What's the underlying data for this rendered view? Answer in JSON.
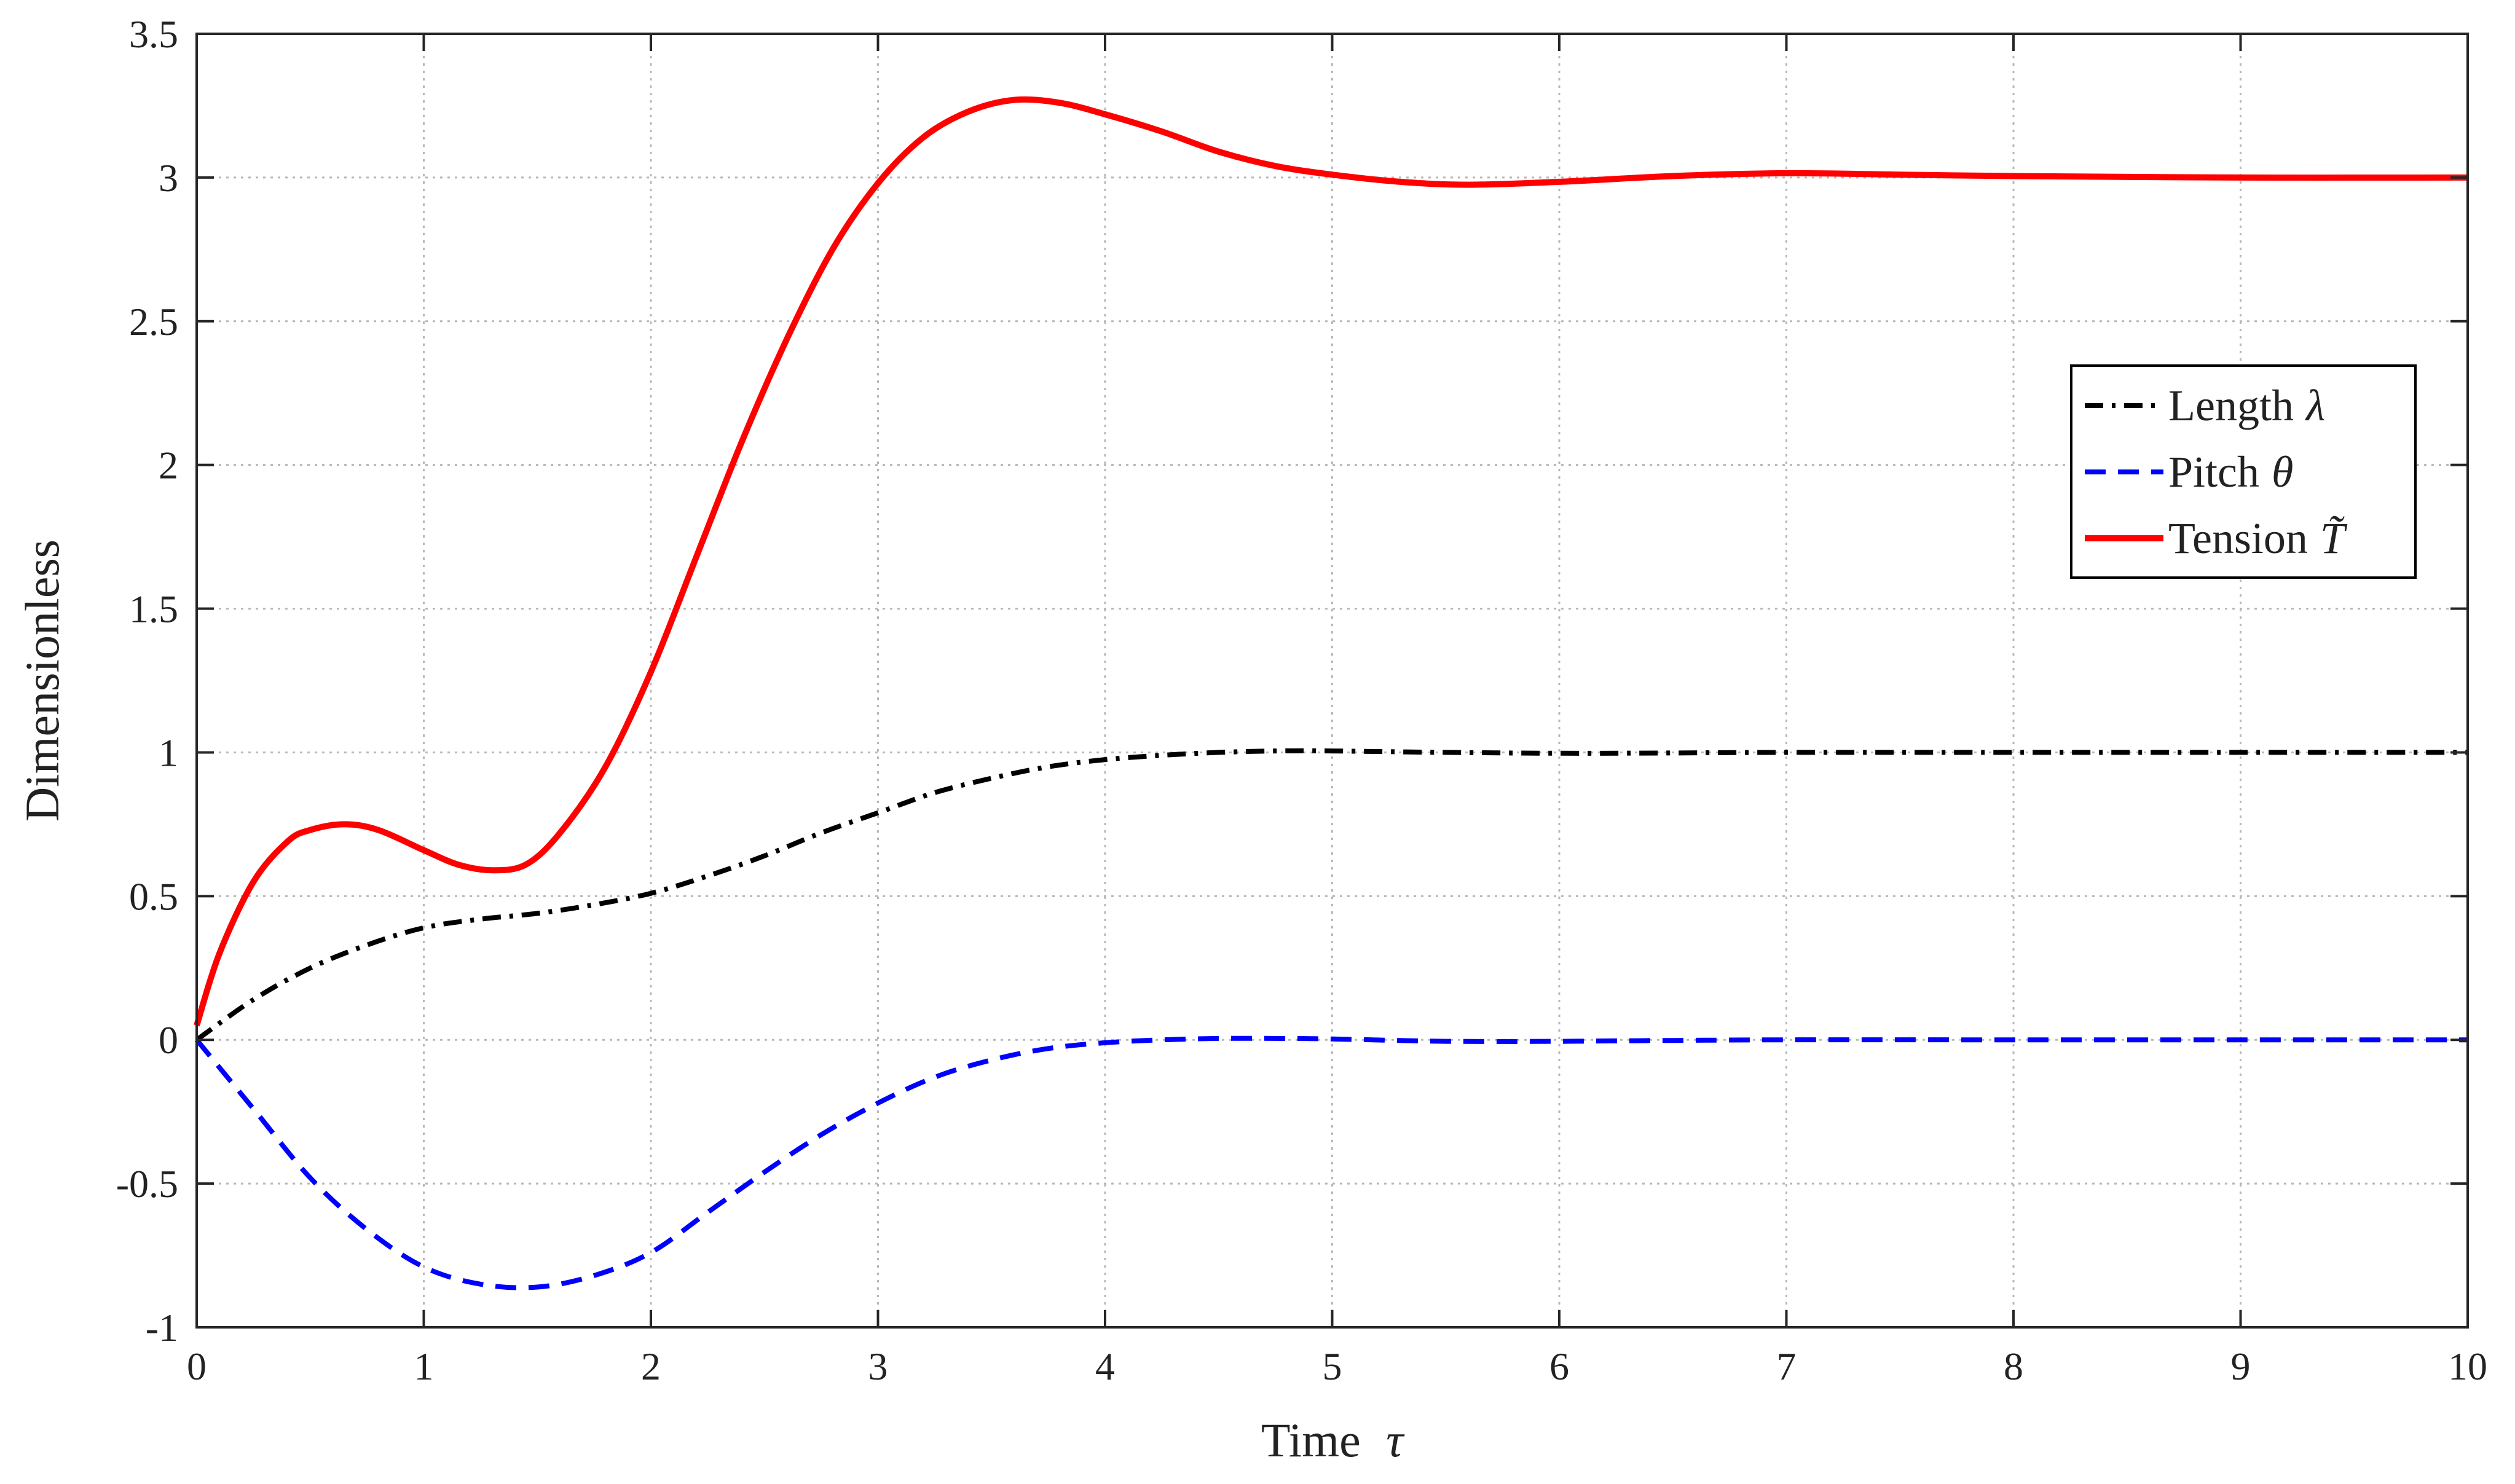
{
  "chart_data": {
    "type": "line",
    "title": "",
    "xlabel": "Time",
    "xlabel_symbol": "τ",
    "ylabel": "Dimensionless",
    "xlim": [
      0,
      10
    ],
    "ylim": [
      -1,
      3.5
    ],
    "xticks": [
      0,
      1,
      2,
      3,
      4,
      5,
      6,
      7,
      8,
      9,
      10
    ],
    "xtick_labels": [
      "0",
      "1",
      "2",
      "3",
      "4",
      "5",
      "6",
      "7",
      "8",
      "9",
      "10"
    ],
    "yticks": [
      -1,
      -0.5,
      0,
      0.5,
      1,
      1.5,
      2,
      2.5,
      3,
      3.5
    ],
    "ytick_labels": [
      "-1",
      "-0.5",
      "0",
      "0.5",
      "1",
      "1.5",
      "2",
      "2.5",
      "3",
      "3.5"
    ],
    "grid": true,
    "legend_position": "right",
    "series": [
      {
        "name": "Length",
        "symbol": "λ",
        "color": "#000000",
        "style": "dash-dot",
        "x": [
          0,
          0.25,
          0.5,
          0.75,
          1,
          1.25,
          1.5,
          1.75,
          2,
          2.25,
          2.5,
          2.75,
          3,
          3.25,
          3.5,
          3.75,
          4,
          4.25,
          4.5,
          4.75,
          5,
          5.5,
          6,
          6.5,
          7,
          8,
          9,
          10
        ],
        "y": [
          0,
          0.14,
          0.25,
          0.33,
          0.39,
          0.42,
          0.44,
          0.47,
          0.51,
          0.57,
          0.64,
          0.72,
          0.79,
          0.86,
          0.91,
          0.95,
          0.975,
          0.99,
          1.0,
          1.005,
          1.005,
          1.0,
          0.997,
          0.998,
          1.0,
          1.0,
          1.0,
          1.0
        ]
      },
      {
        "name": "Pitch",
        "symbol": "θ",
        "color": "#0000ff",
        "style": "dashed",
        "x": [
          0,
          0.25,
          0.5,
          0.75,
          1,
          1.25,
          1.5,
          1.75,
          2,
          2.25,
          2.5,
          2.75,
          3,
          3.25,
          3.5,
          3.75,
          4,
          4.25,
          4.5,
          4.75,
          5,
          5.5,
          6,
          6.5,
          7,
          8,
          9,
          10
        ],
        "y": [
          0,
          -0.24,
          -0.48,
          -0.66,
          -0.79,
          -0.85,
          -0.86,
          -0.82,
          -0.74,
          -0.6,
          -0.46,
          -0.33,
          -0.22,
          -0.13,
          -0.07,
          -0.03,
          -0.01,
          0.0,
          0.005,
          0.005,
          0.003,
          -0.005,
          -0.005,
          -0.002,
          0.0,
          0.0,
          0.0,
          0.0
        ]
      },
      {
        "name": "Tension",
        "symbol": "T̃",
        "color": "#ff0000",
        "style": "solid",
        "x": [
          0,
          0.1,
          0.25,
          0.4,
          0.5,
          0.65,
          0.8,
          1.0,
          1.15,
          1.3,
          1.45,
          1.6,
          1.8,
          2.0,
          2.2,
          2.4,
          2.6,
          2.8,
          3.0,
          3.2,
          3.4,
          3.6,
          3.8,
          4.0,
          4.25,
          4.5,
          4.75,
          5.0,
          5.3,
          5.6,
          6.0,
          6.5,
          7.0,
          7.5,
          8.0,
          9.0,
          10.0
        ],
        "y": [
          0.05,
          0.3,
          0.55,
          0.69,
          0.73,
          0.75,
          0.73,
          0.66,
          0.61,
          0.59,
          0.61,
          0.72,
          0.95,
          1.28,
          1.68,
          2.08,
          2.44,
          2.75,
          2.98,
          3.14,
          3.23,
          3.27,
          3.26,
          3.22,
          3.16,
          3.09,
          3.04,
          3.01,
          2.985,
          2.975,
          2.985,
          3.005,
          3.015,
          3.01,
          3.005,
          3.0,
          3.0
        ]
      }
    ]
  }
}
